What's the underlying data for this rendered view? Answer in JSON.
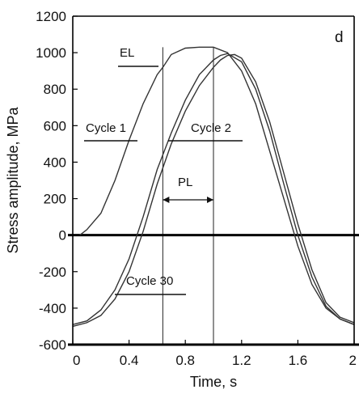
{
  "chart_data": {
    "type": "line",
    "title": "",
    "panel_label": "d",
    "xlabel": "Time, s",
    "ylabel": "Stress amplitude, MPa",
    "xlim": [
      0,
      2
    ],
    "ylim": [
      -600,
      1200
    ],
    "x_ticks": [
      "0",
      "0.4",
      "0.8",
      "1.2",
      "1.6",
      "2"
    ],
    "x_tick_values": [
      0,
      0.4,
      0.8,
      1.2,
      1.6,
      2
    ],
    "y_ticks": [
      "1200",
      "1000",
      "800",
      "600",
      "400",
      "200",
      "0",
      "-200",
      "-400",
      "-600"
    ],
    "y_tick_values": [
      1200,
      1000,
      800,
      600,
      400,
      200,
      0,
      -200,
      -400,
      -600
    ],
    "series": [
      {
        "name": "Cycle 1",
        "x": [
          0.05,
          0.1,
          0.2,
          0.3,
          0.4,
          0.5,
          0.6,
          0.64,
          0.7,
          0.8,
          0.9,
          1.0,
          1.1,
          1.2,
          1.3,
          1.4,
          1.5,
          1.6,
          1.7,
          1.8,
          1.9,
          2.0
        ],
        "y": [
          0,
          30,
          120,
          300,
          520,
          720,
          880,
          920,
          990,
          1025,
          1030,
          1030,
          1000,
          900,
          720,
          460,
          200,
          -60,
          -270,
          -400,
          -460,
          -490
        ]
      },
      {
        "name": "Cycle 2",
        "x": [
          0.0,
          0.1,
          0.2,
          0.3,
          0.4,
          0.5,
          0.6,
          0.7,
          0.8,
          0.9,
          1.0,
          1.05,
          1.1,
          1.2,
          1.3,
          1.4,
          1.5,
          1.6,
          1.7,
          1.8,
          1.9,
          2.0
        ],
        "y": [
          -490,
          -470,
          -410,
          -300,
          -130,
          100,
          360,
          560,
          740,
          880,
          960,
          985,
          995,
          950,
          800,
          570,
          280,
          0,
          -230,
          -390,
          -460,
          -490
        ]
      },
      {
        "name": "Cycle 30",
        "x": [
          0.0,
          0.1,
          0.2,
          0.3,
          0.4,
          0.5,
          0.6,
          0.7,
          0.8,
          0.9,
          1.0,
          1.05,
          1.1,
          1.15,
          1.2,
          1.3,
          1.4,
          1.5,
          1.6,
          1.7,
          1.8,
          1.9,
          2.0
        ],
        "y": [
          -500,
          -480,
          -440,
          -350,
          -200,
          20,
          280,
          500,
          680,
          820,
          920,
          960,
          985,
          990,
          970,
          840,
          620,
          340,
          60,
          -190,
          -370,
          -450,
          -480
        ]
      }
    ],
    "annotations": [
      {
        "text": "EL",
        "x": 0.3,
        "y": 960
      },
      {
        "text": "Cycle 1",
        "x": 0.08,
        "y": 640
      },
      {
        "text": "Cycle 2",
        "x": 0.78,
        "y": 640
      },
      {
        "text": "PL",
        "x": 0.78,
        "y": 300
      },
      {
        "text": "Cycle 30",
        "x": 0.35,
        "y": -270
      }
    ],
    "reference_lines": {
      "vertical_x": [
        0.64,
        1.0
      ],
      "horizontal_y": [
        0,
        -600
      ]
    },
    "grid": false,
    "legend": "none"
  }
}
